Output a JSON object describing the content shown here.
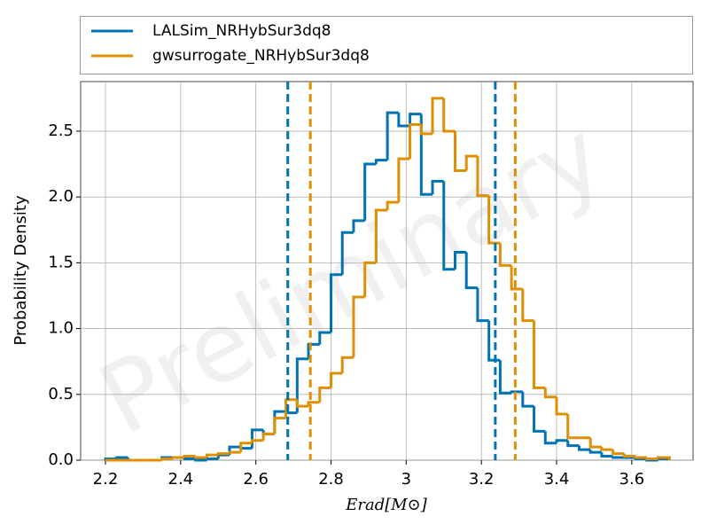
{
  "chart_data": {
    "type": "histogram",
    "xlabel": "Erad[M⊙]",
    "ylabel": "Probability Density",
    "watermark": "Preliminary",
    "bins": [
      2.2,
      2.23,
      2.26,
      2.29,
      2.32,
      2.35,
      2.38,
      2.41,
      2.44,
      2.47,
      2.5,
      2.53,
      2.56,
      2.59,
      2.62,
      2.65,
      2.68,
      2.71,
      2.74,
      2.77,
      2.8,
      2.83,
      2.86,
      2.89,
      2.92,
      2.95,
      2.98,
      3.01,
      3.04,
      3.07,
      3.1,
      3.13,
      3.16,
      3.19,
      3.22,
      3.25,
      3.28,
      3.31,
      3.34,
      3.37,
      3.4,
      3.43,
      3.46,
      3.49,
      3.52,
      3.55,
      3.58,
      3.61,
      3.64,
      3.67,
      3.7
    ],
    "series": [
      {
        "name": "LALSim_NRHybSur3dq8",
        "color": "#0173b2",
        "values": [
          0.01,
          0.02,
          0,
          0,
          0,
          0.02,
          0.02,
          0.01,
          0,
          0.01,
          0.04,
          0.1,
          0.09,
          0.23,
          0.2,
          0.37,
          0.36,
          0.77,
          0.88,
          0.97,
          1.41,
          1.73,
          1.82,
          2.25,
          2.28,
          2.64,
          2.54,
          2.63,
          2.02,
          2.12,
          1.45,
          1.58,
          1.31,
          1.06,
          0.76,
          0.51,
          0.52,
          0.41,
          0.22,
          0.13,
          0.15,
          0.11,
          0.08,
          0.06,
          0.03,
          0.02,
          0.02,
          0.01,
          0,
          0.01
        ]
      },
      {
        "name": "gwsurrogate_NRHybSur3dq8",
        "color": "#de8f05",
        "values": [
          0,
          0,
          0,
          0,
          0,
          0.01,
          0.02,
          0.03,
          0.02,
          0.04,
          0.05,
          0.06,
          0.13,
          0.15,
          0.2,
          0.32,
          0.46,
          0.41,
          0.44,
          0.55,
          0.66,
          0.78,
          1.24,
          1.5,
          1.9,
          1.96,
          2.29,
          2.55,
          2.48,
          2.75,
          2.5,
          2.2,
          2.31,
          2.01,
          1.65,
          1.48,
          1.3,
          1.06,
          0.55,
          0.48,
          0.35,
          0.17,
          0.17,
          0.1,
          0.08,
          0.05,
          0.03,
          0.02,
          0.01,
          0.02
        ]
      }
    ],
    "vlines": [
      {
        "x": 2.685,
        "color": "#0173b2"
      },
      {
        "x": 3.237,
        "color": "#0173b2"
      },
      {
        "x": 2.745,
        "color": "#de8f05"
      },
      {
        "x": 3.29,
        "color": "#de8f05"
      }
    ],
    "xlim": [
      2.134,
      3.763
    ],
    "ylim": [
      0,
      2.877
    ],
    "xticks": [
      2.2,
      2.4,
      2.6,
      2.8,
      3.0,
      3.2,
      3.4,
      3.6
    ],
    "yticks": [
      {
        "value": 0,
        "label": "0.0"
      },
      0.5,
      {
        "value": 1,
        "label": "1.0"
      },
      1.5,
      {
        "value": 2,
        "label": "2.0"
      },
      2.5
    ],
    "grid": true
  }
}
